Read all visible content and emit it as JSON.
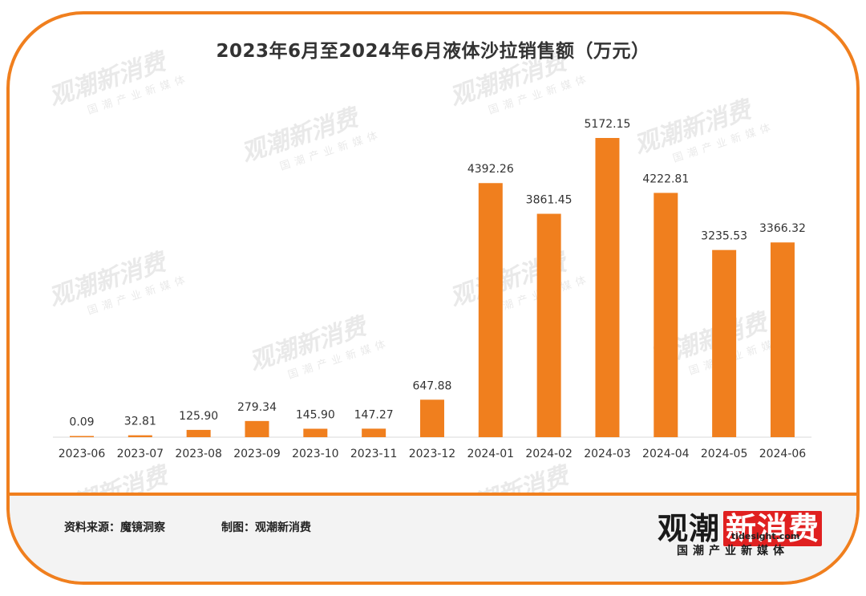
{
  "title": "2023年6月至2024年6月液体沙拉销售额（万元）",
  "footer": {
    "source": "资料来源：魔镜洞察",
    "made_by": "制图：观潮新消费"
  },
  "brand": {
    "logo_text": "观潮",
    "logo_accent": "新消费",
    "domain": "tidesight.com",
    "slogan": "国潮产业新媒体"
  },
  "watermark": {
    "main": "观潮新消费",
    "domain": "tidesight.com",
    "sub": "国潮产业新媒体"
  },
  "colors": {
    "bar": "#f07f1e",
    "frame": "#f07f1e",
    "text": "#333333"
  },
  "chart_data": {
    "type": "bar",
    "title": "2023年6月至2024年6月液体沙拉销售额（万元）",
    "categories": [
      "2023-06",
      "2023-07",
      "2023-08",
      "2023-09",
      "2023-10",
      "2023-11",
      "2023-12",
      "2024-01",
      "2024-02",
      "2024-03",
      "2024-04",
      "2024-05",
      "2024-06"
    ],
    "values": [
      0.09,
      32.81,
      125.9,
      279.34,
      145.9,
      147.27,
      647.88,
      4392.26,
      3861.45,
      5172.15,
      4222.81,
      3235.53,
      3366.32
    ],
    "value_labels": [
      "0.09",
      "32.81",
      "125.90",
      "279.34",
      "145.90",
      "147.27",
      "647.88",
      "4392.26",
      "3861.45",
      "5172.15",
      "4222.81",
      "3235.53",
      "3366.32"
    ],
    "xlabel": "",
    "ylabel": "",
    "ylim": [
      0,
      5172.15
    ],
    "grid": false,
    "legend": "none"
  }
}
